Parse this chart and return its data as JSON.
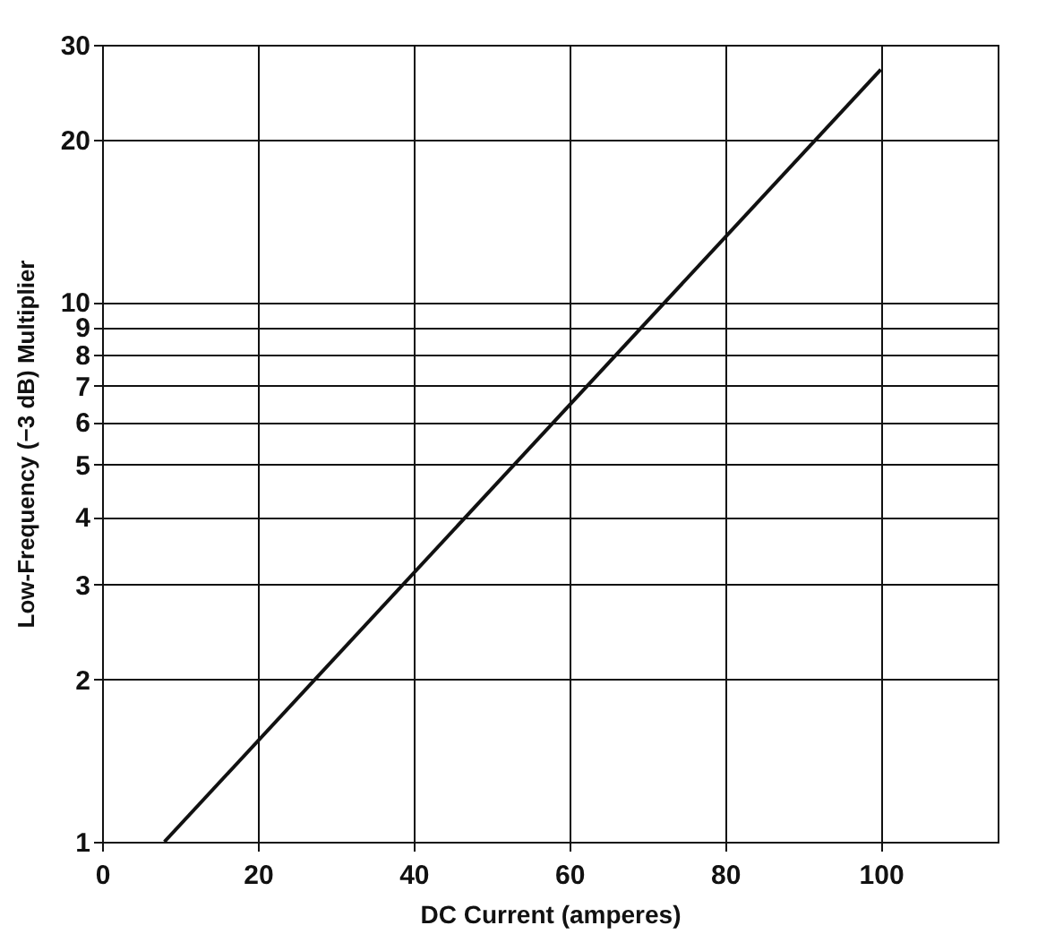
{
  "chart_data": {
    "type": "line",
    "xlabel": "DC Current (amperes)",
    "ylabel": "Low-Frequency (−3 dB) Multiplier",
    "x": [
      8,
      100
    ],
    "series": [
      {
        "color": "#111111",
        "values": [
          1,
          27
        ]
      }
    ],
    "xlim": [
      0,
      115
    ],
    "xticks": [
      0,
      20,
      40,
      60,
      80,
      100
    ],
    "ylim": [
      1,
      30
    ],
    "yticks": [
      1,
      2,
      3,
      4,
      5,
      6,
      7,
      8,
      9,
      10,
      20,
      30
    ],
    "log": "y",
    "grid": true,
    "marker": "none",
    "line_style": "solid"
  }
}
